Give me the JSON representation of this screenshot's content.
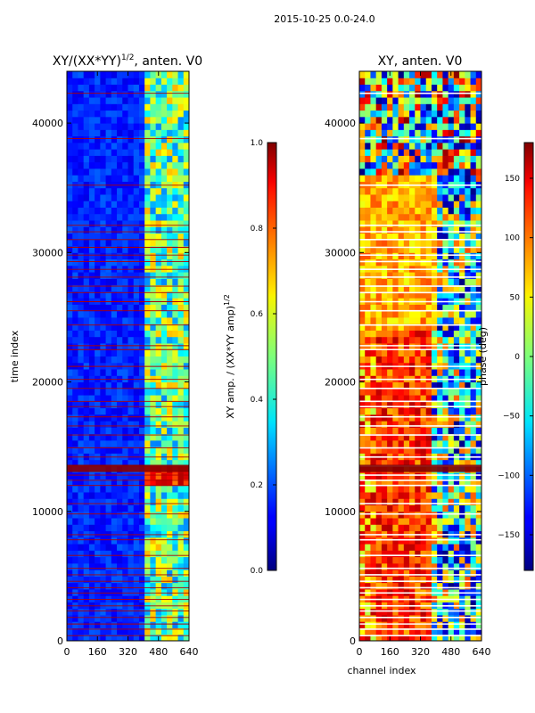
{
  "figure": {
    "suptitle": "2015-10-25 0.0-24.0"
  },
  "chart_data": [
    {
      "type": "heatmap",
      "title": "XY/(XX*YY)",
      "title_sup": "1/2",
      "title_suffix": ", anten. V0",
      "xlabel": "",
      "ylabel": "time index",
      "xlim": [
        0,
        640
      ],
      "ylim": [
        0,
        44000
      ],
      "xticks": [
        0,
        160,
        320,
        480,
        640
      ],
      "xtick_labels": [
        "0",
        "160",
        "320",
        "480",
        "640"
      ],
      "yticks": [
        0,
        10000,
        20000,
        30000,
        40000
      ],
      "ytick_labels": [
        "0",
        "10000",
        "20000",
        "30000",
        "40000"
      ],
      "colormap": "jet",
      "dark_band_channel_start": 400,
      "bright_band_time_range": [
        12000,
        13600
      ],
      "flagged_rows": [
        400,
        900,
        1300,
        1800,
        2300,
        2700,
        3200,
        3700,
        4100,
        4600,
        5100,
        5600,
        6600,
        7800,
        8200,
        9800,
        10600,
        12000,
        12400,
        12800,
        13500,
        14200,
        14900,
        15900,
        16600,
        17300,
        18100,
        18500,
        19500,
        20200,
        21200,
        22500,
        22800,
        24400,
        25500,
        26200,
        26900,
        27400,
        28100,
        28700,
        29300,
        29800,
        30400,
        31000,
        31600,
        32100,
        35200,
        38800,
        42300
      ],
      "colorbar": {
        "label": "XY amp. / (XX*YY amp)",
        "label_sup": "1/2",
        "range": [
          0.0,
          1.0
        ],
        "ticks": [
          0.0,
          0.2,
          0.4,
          0.6,
          0.8,
          1.0
        ],
        "tick_labels": [
          "0.0",
          "0.2",
          "0.4",
          "0.6",
          "0.8",
          "1.0"
        ]
      }
    },
    {
      "type": "heatmap",
      "title": "XY, anten. V0",
      "xlabel": "channel index",
      "ylabel": "",
      "xlim": [
        0,
        640
      ],
      "ylim": [
        0,
        44000
      ],
      "xticks": [
        0,
        160,
        320,
        480,
        640
      ],
      "xtick_labels": [
        "0",
        "160",
        "320",
        "480",
        "640"
      ],
      "yticks": [
        0,
        10000,
        20000,
        30000,
        40000
      ],
      "ytick_labels": [
        "0",
        "10000",
        "20000",
        "30000",
        "40000"
      ],
      "colormap": "jet",
      "dark_band_channel_start": 400,
      "bright_band_time_range": [
        12000,
        13600
      ],
      "flagged_rows": [
        400,
        900,
        1300,
        1800,
        2300,
        2700,
        3200,
        3700,
        4100,
        4600,
        5100,
        5600,
        6600,
        7800,
        8200,
        9800,
        10600,
        12000,
        12400,
        12800,
        13500,
        14200,
        14900,
        15900,
        16600,
        17300,
        18100,
        18500,
        19500,
        20200,
        21200,
        22500,
        22800,
        24400,
        25500,
        26200,
        26900,
        27400,
        28100,
        28700,
        29300,
        29800,
        30400,
        31000,
        31600,
        32100,
        35200,
        38800,
        42300
      ],
      "colorbar": {
        "label": "phase (deg)",
        "range": [
          -180,
          180
        ],
        "ticks": [
          -150,
          -100,
          -50,
          0,
          50,
          100,
          150
        ],
        "tick_labels": [
          "−150",
          "−100",
          "−50",
          "0",
          "50",
          "100",
          "150"
        ]
      }
    }
  ]
}
